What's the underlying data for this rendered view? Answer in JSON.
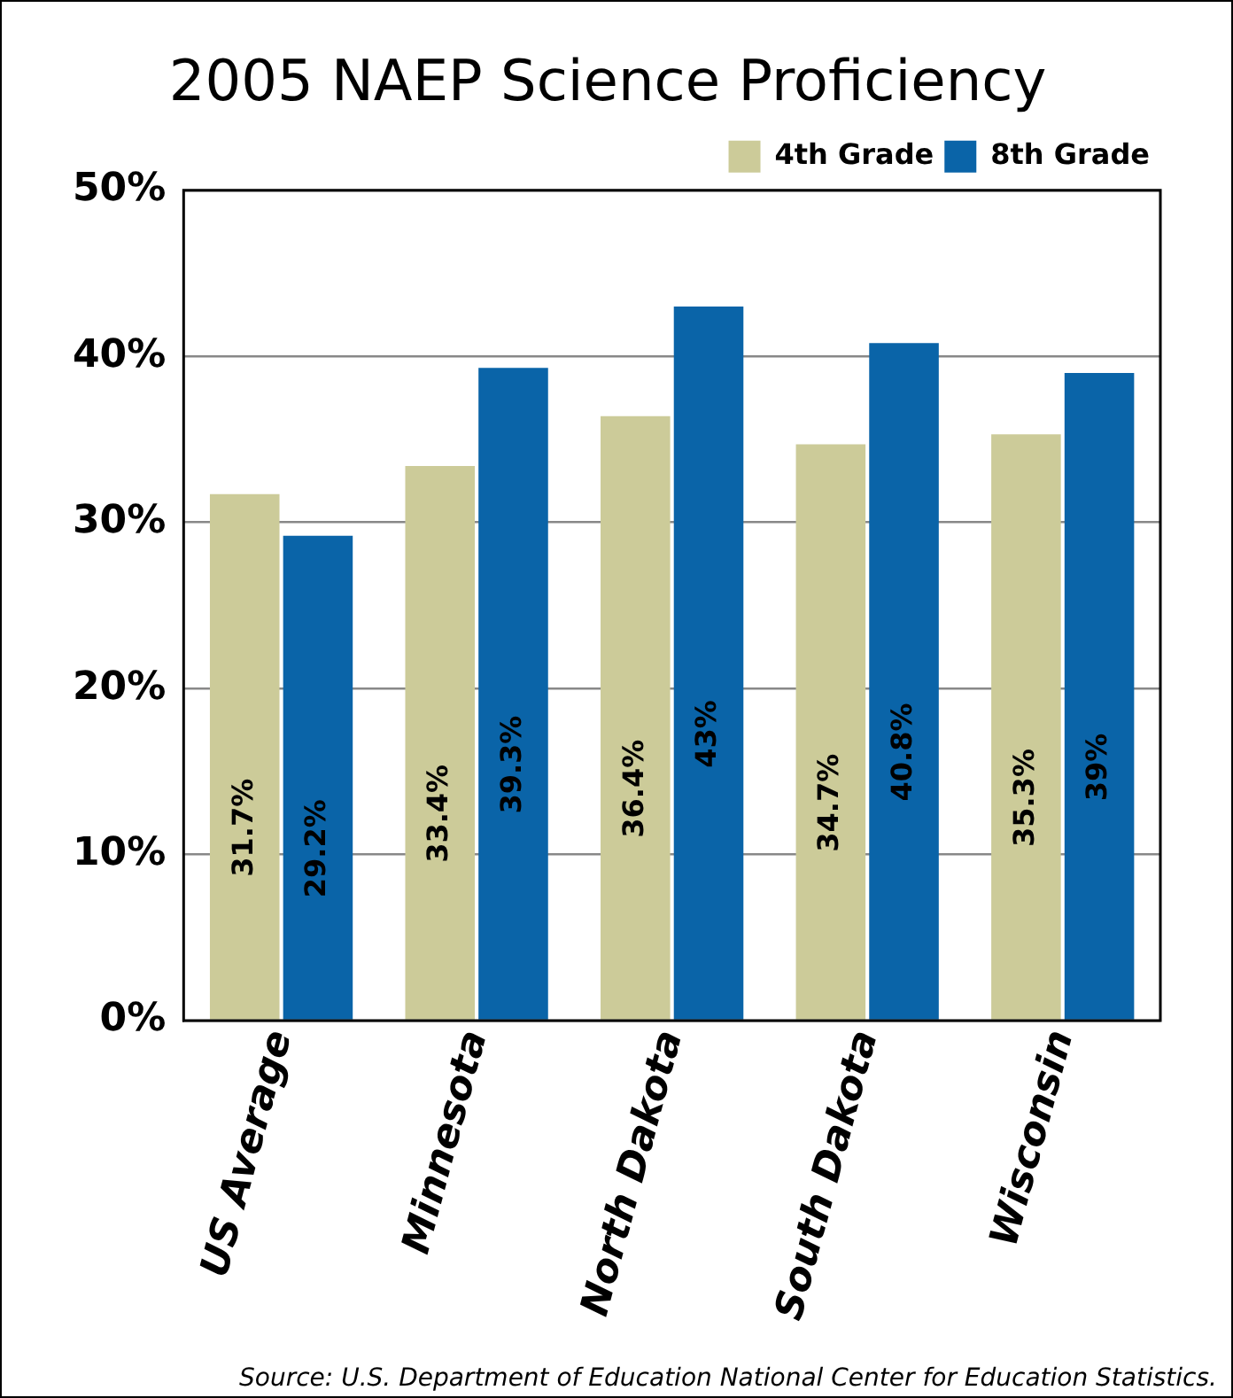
{
  "chart_data": {
    "type": "bar",
    "title": "2005 NAEP Science Proficiency",
    "categories": [
      "US Average",
      "Minnesota",
      "North Dakota",
      "South Dakota",
      "Wisconsin"
    ],
    "series": [
      {
        "name": "4th Grade",
        "color": "#cccb99",
        "values": [
          31.7,
          33.4,
          36.4,
          34.7,
          35.3
        ],
        "value_labels": [
          "31.7%",
          "33.4%",
          "36.4%",
          "34.7%",
          "35.3%"
        ]
      },
      {
        "name": "8th Grade",
        "color": "#0a64a8",
        "values": [
          29.2,
          39.3,
          43,
          40.8,
          39
        ],
        "value_labels": [
          "29.2%",
          "39.3%",
          "43%",
          "40.8%",
          "39%"
        ]
      }
    ],
    "ylim": [
      0,
      50
    ],
    "yticks": [
      {
        "value": 0,
        "label": "0%"
      },
      {
        "value": 10,
        "label": "10%"
      },
      {
        "value": 20,
        "label": "20%"
      },
      {
        "value": 30,
        "label": "30%"
      },
      {
        "value": 40,
        "label": "40%"
      },
      {
        "value": 50,
        "label": "50%"
      }
    ],
    "grid": "y",
    "legend": "top right",
    "annotations": [
      "Source: U.S. Department of Education National Center for Education Statistics."
    ]
  }
}
